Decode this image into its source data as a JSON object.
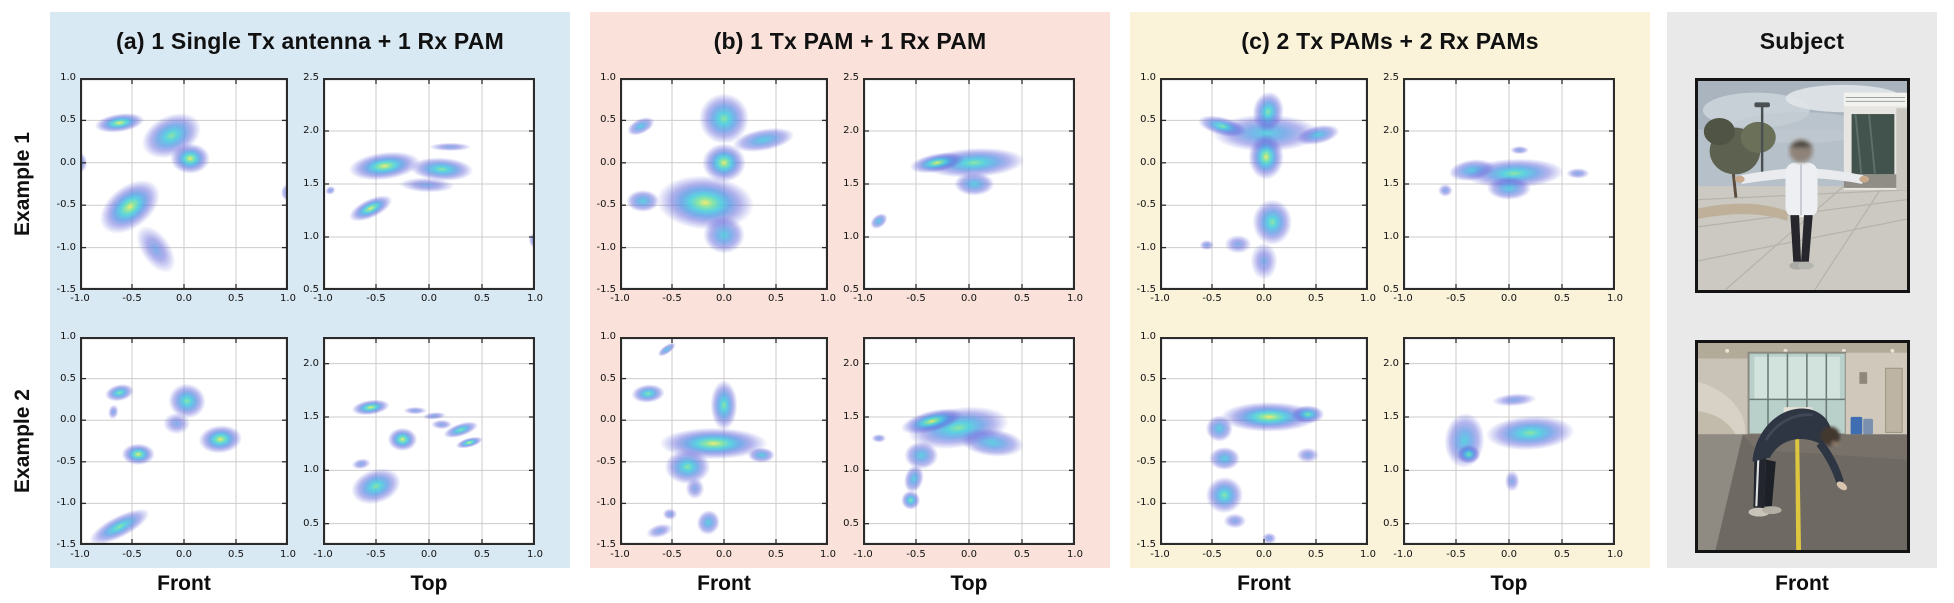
{
  "figure": {
    "row_labels": [
      "Example 1",
      "Example 2"
    ],
    "panels": [
      {
        "id": "a",
        "title": "(a) 1 Single Tx antenna + 1 Rx PAM",
        "bg_key": "panel_a_bg",
        "col_labels": [
          "Front",
          "Top"
        ]
      },
      {
        "id": "b",
        "title": "(b) 1 Tx PAM + 1 Rx PAM",
        "bg_key": "panel_b_bg",
        "col_labels": [
          "Front",
          "Top"
        ]
      },
      {
        "id": "c",
        "title": "(c) 2 Tx PAMs + 2 Rx PAMs",
        "bg_key": "panel_c_bg",
        "col_labels": [
          "Front",
          "Top"
        ]
      }
    ],
    "subject_panel": {
      "title": "Subject",
      "bg_key": "subject_bg",
      "col_label": "Front",
      "photos": [
        {
          "name": "subject-tpose-outdoor",
          "description": "Person standing outdoors on a concrete plaza with both arms extended sideways (T-pose), white jacket, dark pants, face blurred"
        },
        {
          "name": "subject-bend-indoor",
          "description": "Person indoors bending forward reaching toward the floor next to a yellow tape line on dark carpet"
        }
      ]
    },
    "colors": {
      "panel_a_bg": "#d9e9f3",
      "panel_b_bg": "#fae2da",
      "panel_c_bg": "#faf3da",
      "subject_bg": "#e9e9e9",
      "plot_border": "#2b2b2b",
      "grid": "#cccccc",
      "heat_core_yellow": "#f6e96a",
      "heat_green": "#7fe39b",
      "heat_cyan": "#3fc9dc",
      "heat_blue": "#4a90e2",
      "heat_outer_blue": "#5d5fd8"
    }
  },
  "chart_data": [
    {
      "panel": "a",
      "example": 1,
      "view": "Front",
      "type": "scatter",
      "xlim": [
        -1,
        1
      ],
      "ylim": [
        -1.5,
        1.0
      ],
      "x_ticks": [
        -1.0,
        -0.5,
        0.0,
        0.5,
        1.0
      ],
      "y_ticks": [
        1.0,
        0.5,
        0.0,
        -0.5,
        -1.0,
        -1.5
      ],
      "blobs": [
        {
          "x": -0.62,
          "y": 0.47,
          "rx": 0.24,
          "ry": 0.11,
          "rot": -8,
          "heat": "hot"
        },
        {
          "x": -0.12,
          "y": 0.32,
          "rx": 0.3,
          "ry": 0.24,
          "rot": -25,
          "heat": "high"
        },
        {
          "x": 0.06,
          "y": 0.05,
          "rx": 0.19,
          "ry": 0.18,
          "rot": 0,
          "heat": "hot"
        },
        {
          "x": -1.02,
          "y": 0.0,
          "rx": 0.09,
          "ry": 0.13,
          "rot": 0,
          "heat": "mid"
        },
        {
          "x": -0.52,
          "y": -0.52,
          "rx": 0.33,
          "ry": 0.25,
          "rot": -38,
          "heat": "hot"
        },
        {
          "x": -0.27,
          "y": -1.02,
          "rx": 0.14,
          "ry": 0.32,
          "rot": -35,
          "heat": "low"
        },
        {
          "x": 1.02,
          "y": -0.35,
          "rx": 0.09,
          "ry": 0.11,
          "rot": 0,
          "heat": "mid"
        }
      ]
    },
    {
      "panel": "a",
      "example": 1,
      "view": "Top",
      "type": "scatter",
      "xlim": [
        -1,
        1
      ],
      "ylim": [
        0.5,
        2.5
      ],
      "x_ticks": [
        -1.0,
        -0.5,
        0.0,
        0.5,
        1.0
      ],
      "y_ticks": [
        2.5,
        2.0,
        1.5,
        1.0,
        0.5
      ],
      "blobs": [
        {
          "x": -0.42,
          "y": 1.67,
          "rx": 0.34,
          "ry": 0.13,
          "rot": -7,
          "heat": "hot"
        },
        {
          "x": 0.12,
          "y": 1.64,
          "rx": 0.3,
          "ry": 0.11,
          "rot": 3,
          "heat": "high"
        },
        {
          "x": 0.2,
          "y": 1.85,
          "rx": 0.2,
          "ry": 0.04,
          "rot": 0,
          "heat": "low"
        },
        {
          "x": -0.02,
          "y": 1.49,
          "rx": 0.26,
          "ry": 0.07,
          "rot": 2,
          "heat": "low"
        },
        {
          "x": -0.55,
          "y": 1.27,
          "rx": 0.22,
          "ry": 0.09,
          "rot": -25,
          "heat": "hot"
        },
        {
          "x": -0.93,
          "y": 1.44,
          "rx": 0.05,
          "ry": 0.04,
          "rot": -20,
          "heat": "low"
        },
        {
          "x": 1.02,
          "y": 0.97,
          "rx": 0.08,
          "ry": 0.08,
          "rot": 0,
          "heat": "mid"
        }
      ]
    },
    {
      "panel": "a",
      "example": 2,
      "view": "Front",
      "type": "scatter",
      "xlim": [
        -1,
        1
      ],
      "ylim": [
        -1.5,
        1.0
      ],
      "x_ticks": [
        -1.0,
        -0.5,
        0.0,
        0.5,
        1.0
      ],
      "y_ticks": [
        1.0,
        0.5,
        0.0,
        -0.5,
        -1.0,
        -1.5
      ],
      "blobs": [
        {
          "x": -0.62,
          "y": 0.33,
          "rx": 0.14,
          "ry": 0.1,
          "rot": -12,
          "heat": "high"
        },
        {
          "x": -0.68,
          "y": 0.1,
          "rx": 0.05,
          "ry": 0.09,
          "rot": 10,
          "heat": "low"
        },
        {
          "x": 0.03,
          "y": 0.23,
          "rx": 0.18,
          "ry": 0.21,
          "rot": 12,
          "heat": "high"
        },
        {
          "x": -0.07,
          "y": -0.04,
          "rx": 0.13,
          "ry": 0.13,
          "rot": 0,
          "heat": "low"
        },
        {
          "x": -0.44,
          "y": -0.41,
          "rx": 0.16,
          "ry": 0.13,
          "rot": 0,
          "heat": "hot"
        },
        {
          "x": 0.35,
          "y": -0.23,
          "rx": 0.21,
          "ry": 0.17,
          "rot": -5,
          "heat": "hot"
        },
        {
          "x": -0.62,
          "y": -1.28,
          "rx": 0.32,
          "ry": 0.13,
          "rot": -27,
          "heat": "high"
        }
      ]
    },
    {
      "panel": "a",
      "example": 2,
      "view": "Top",
      "type": "scatter",
      "xlim": [
        -1,
        1
      ],
      "ylim": [
        0.3,
        2.25
      ],
      "x_ticks": [
        -1.0,
        -0.5,
        0.0,
        0.5,
        1.0
      ],
      "y_ticks": [
        2.0,
        1.5,
        1.0,
        0.5
      ],
      "blobs": [
        {
          "x": -0.55,
          "y": 1.59,
          "rx": 0.18,
          "ry": 0.07,
          "rot": -8,
          "heat": "hot"
        },
        {
          "x": -0.13,
          "y": 1.56,
          "rx": 0.11,
          "ry": 0.035,
          "rot": 0,
          "heat": "low"
        },
        {
          "x": 0.05,
          "y": 1.51,
          "rx": 0.11,
          "ry": 0.035,
          "rot": -5,
          "heat": "low"
        },
        {
          "x": -0.25,
          "y": 1.29,
          "rx": 0.14,
          "ry": 0.11,
          "rot": 0,
          "heat": "hot"
        },
        {
          "x": 0.12,
          "y": 1.43,
          "rx": 0.1,
          "ry": 0.045,
          "rot": 0,
          "heat": "low"
        },
        {
          "x": 0.3,
          "y": 1.38,
          "rx": 0.17,
          "ry": 0.06,
          "rot": -18,
          "heat": "high"
        },
        {
          "x": 0.38,
          "y": 1.26,
          "rx": 0.13,
          "ry": 0.045,
          "rot": -15,
          "heat": "hot"
        },
        {
          "x": -0.64,
          "y": 1.06,
          "rx": 0.09,
          "ry": 0.05,
          "rot": -10,
          "heat": "low"
        },
        {
          "x": -0.5,
          "y": 0.85,
          "rx": 0.24,
          "ry": 0.16,
          "rot": -18,
          "heat": "high"
        }
      ]
    },
    {
      "panel": "b",
      "example": 1,
      "view": "Front",
      "type": "scatter",
      "xlim": [
        -1,
        1
      ],
      "ylim": [
        -1.5,
        1.0
      ],
      "x_ticks": [
        -1.0,
        -0.5,
        0.0,
        0.5,
        1.0
      ],
      "y_ticks": [
        1.0,
        0.5,
        0.0,
        -0.5,
        -1.0,
        -1.5
      ],
      "blobs": [
        {
          "x": -0.8,
          "y": 0.43,
          "rx": 0.14,
          "ry": 0.09,
          "rot": -25,
          "heat": "mid"
        },
        {
          "x": 0.0,
          "y": 0.52,
          "rx": 0.24,
          "ry": 0.3,
          "rot": 0,
          "heat": "high"
        },
        {
          "x": 0.38,
          "y": 0.27,
          "rx": 0.3,
          "ry": 0.13,
          "rot": -10,
          "heat": "mid"
        },
        {
          "x": 0.0,
          "y": 0.0,
          "rx": 0.21,
          "ry": 0.23,
          "rot": 0,
          "heat": "hot"
        },
        {
          "x": -0.18,
          "y": -0.47,
          "rx": 0.47,
          "ry": 0.32,
          "rot": 4,
          "heat": "hot"
        },
        {
          "x": 0.0,
          "y": -0.85,
          "rx": 0.2,
          "ry": 0.22,
          "rot": 0,
          "heat": "mid"
        },
        {
          "x": -0.78,
          "y": -0.45,
          "rx": 0.16,
          "ry": 0.13,
          "rot": 0,
          "heat": "mid"
        }
      ]
    },
    {
      "panel": "b",
      "example": 1,
      "view": "Top",
      "type": "scatter",
      "xlim": [
        -1,
        1
      ],
      "ylim": [
        0.5,
        2.5
      ],
      "x_ticks": [
        -1.0,
        -0.5,
        0.0,
        0.5,
        1.0
      ],
      "y_ticks": [
        2.5,
        2.0,
        1.5,
        1.0,
        0.5
      ],
      "blobs": [
        {
          "x": 0.05,
          "y": 1.7,
          "rx": 0.48,
          "ry": 0.14,
          "rot": -3,
          "heat": "high"
        },
        {
          "x": -0.3,
          "y": 1.7,
          "rx": 0.26,
          "ry": 0.09,
          "rot": -10,
          "heat": "hot"
        },
        {
          "x": 0.05,
          "y": 1.5,
          "rx": 0.19,
          "ry": 0.11,
          "rot": 0,
          "heat": "mid"
        },
        {
          "x": -0.85,
          "y": 1.15,
          "rx": 0.09,
          "ry": 0.06,
          "rot": -38,
          "heat": "mid"
        }
      ]
    },
    {
      "panel": "b",
      "example": 2,
      "view": "Front",
      "type": "scatter",
      "xlim": [
        -1,
        1
      ],
      "ylim": [
        -1.5,
        1.0
      ],
      "x_ticks": [
        -1.0,
        -0.5,
        0.0,
        0.5,
        1.0
      ],
      "y_ticks": [
        1.0,
        0.5,
        0.0,
        -0.5,
        -1.0,
        -1.5
      ],
      "blobs": [
        {
          "x": -0.55,
          "y": 0.85,
          "rx": 0.1,
          "ry": 0.05,
          "rot": -35,
          "heat": "mid"
        },
        {
          "x": -0.73,
          "y": 0.32,
          "rx": 0.16,
          "ry": 0.11,
          "rot": -5,
          "heat": "high"
        },
        {
          "x": -0.1,
          "y": -0.28,
          "rx": 0.52,
          "ry": 0.19,
          "rot": 0,
          "heat": "hot"
        },
        {
          "x": 0.0,
          "y": 0.18,
          "rx": 0.13,
          "ry": 0.3,
          "rot": 0,
          "heat": "high"
        },
        {
          "x": -0.35,
          "y": -0.56,
          "rx": 0.22,
          "ry": 0.21,
          "rot": 0,
          "heat": "high"
        },
        {
          "x": -0.28,
          "y": -0.82,
          "rx": 0.09,
          "ry": 0.13,
          "rot": 0,
          "heat": "low"
        },
        {
          "x": 0.36,
          "y": -0.42,
          "rx": 0.13,
          "ry": 0.09,
          "rot": 0,
          "heat": "mid"
        },
        {
          "x": -0.62,
          "y": -1.33,
          "rx": 0.13,
          "ry": 0.08,
          "rot": -15,
          "heat": "low"
        },
        {
          "x": -0.52,
          "y": -1.13,
          "rx": 0.07,
          "ry": 0.07,
          "rot": 0,
          "heat": "low"
        },
        {
          "x": -0.15,
          "y": -1.23,
          "rx": 0.11,
          "ry": 0.15,
          "rot": 20,
          "heat": "mid"
        }
      ]
    },
    {
      "panel": "b",
      "example": 2,
      "view": "Top",
      "type": "scatter",
      "xlim": [
        -1,
        1
      ],
      "ylim": [
        0.3,
        2.25
      ],
      "x_ticks": [
        -1.0,
        -0.5,
        0.0,
        0.5,
        1.0
      ],
      "y_ticks": [
        2.0,
        1.5,
        1.0,
        0.5
      ],
      "blobs": [
        {
          "x": -0.1,
          "y": 1.4,
          "rx": 0.48,
          "ry": 0.19,
          "rot": -8,
          "heat": "high"
        },
        {
          "x": -0.35,
          "y": 1.46,
          "rx": 0.3,
          "ry": 0.1,
          "rot": -14,
          "heat": "hot"
        },
        {
          "x": 0.22,
          "y": 1.26,
          "rx": 0.3,
          "ry": 0.13,
          "rot": 6,
          "heat": "mid"
        },
        {
          "x": -0.45,
          "y": 1.14,
          "rx": 0.16,
          "ry": 0.13,
          "rot": 0,
          "heat": "mid"
        },
        {
          "x": -0.52,
          "y": 0.92,
          "rx": 0.09,
          "ry": 0.13,
          "rot": 15,
          "heat": "mid"
        },
        {
          "x": -0.55,
          "y": 0.72,
          "rx": 0.09,
          "ry": 0.09,
          "rot": 0,
          "heat": "high"
        },
        {
          "x": -0.85,
          "y": 1.3,
          "rx": 0.07,
          "ry": 0.04,
          "rot": 0,
          "heat": "low"
        }
      ]
    },
    {
      "panel": "c",
      "example": 1,
      "view": "Front",
      "type": "scatter",
      "xlim": [
        -1,
        1
      ],
      "ylim": [
        -1.5,
        1.0
      ],
      "x_ticks": [
        -1.0,
        -0.5,
        0.0,
        0.5,
        1.0
      ],
      "y_ticks": [
        1.0,
        0.5,
        0.0,
        -0.5,
        -1.0,
        -1.5
      ],
      "blobs": [
        {
          "x": 0.02,
          "y": 0.35,
          "rx": 0.52,
          "ry": 0.22,
          "rot": 0,
          "heat": "mid"
        },
        {
          "x": 0.04,
          "y": 0.6,
          "rx": 0.15,
          "ry": 0.24,
          "rot": 8,
          "heat": "high"
        },
        {
          "x": -0.4,
          "y": 0.43,
          "rx": 0.24,
          "ry": 0.11,
          "rot": 14,
          "heat": "high"
        },
        {
          "x": 0.52,
          "y": 0.33,
          "rx": 0.21,
          "ry": 0.11,
          "rot": -12,
          "heat": "mid"
        },
        {
          "x": 0.02,
          "y": 0.07,
          "rx": 0.17,
          "ry": 0.27,
          "rot": 0,
          "heat": "hot"
        },
        {
          "x": 0.08,
          "y": -0.7,
          "rx": 0.19,
          "ry": 0.27,
          "rot": 0,
          "heat": "high"
        },
        {
          "x": -0.25,
          "y": -0.96,
          "rx": 0.13,
          "ry": 0.11,
          "rot": 0,
          "heat": "low"
        },
        {
          "x": 0.0,
          "y": -1.16,
          "rx": 0.13,
          "ry": 0.22,
          "rot": 0,
          "heat": "low"
        },
        {
          "x": -0.55,
          "y": -0.97,
          "rx": 0.07,
          "ry": 0.06,
          "rot": 0,
          "heat": "low"
        }
      ]
    },
    {
      "panel": "c",
      "example": 1,
      "view": "Top",
      "type": "scatter",
      "xlim": [
        -1,
        1
      ],
      "ylim": [
        0.5,
        2.5
      ],
      "x_ticks": [
        -1.0,
        -0.5,
        0.0,
        0.5,
        1.0
      ],
      "y_ticks": [
        2.5,
        2.0,
        1.5,
        1.0,
        0.5
      ],
      "blobs": [
        {
          "x": 0.05,
          "y": 1.6,
          "rx": 0.47,
          "ry": 0.14,
          "rot": -2,
          "heat": "high"
        },
        {
          "x": -0.35,
          "y": 1.63,
          "rx": 0.22,
          "ry": 0.1,
          "rot": -8,
          "heat": "mid"
        },
        {
          "x": 0.0,
          "y": 1.46,
          "rx": 0.21,
          "ry": 0.11,
          "rot": 0,
          "heat": "mid"
        },
        {
          "x": -0.6,
          "y": 1.44,
          "rx": 0.07,
          "ry": 0.06,
          "rot": 0,
          "heat": "low"
        },
        {
          "x": 0.1,
          "y": 1.82,
          "rx": 0.09,
          "ry": 0.04,
          "rot": 0,
          "heat": "low"
        },
        {
          "x": 0.65,
          "y": 1.6,
          "rx": 0.11,
          "ry": 0.05,
          "rot": 0,
          "heat": "low"
        }
      ]
    },
    {
      "panel": "c",
      "example": 2,
      "view": "Front",
      "type": "scatter",
      "xlim": [
        -1,
        1
      ],
      "ylim": [
        -1.5,
        1.0
      ],
      "x_ticks": [
        -1.0,
        -0.5,
        0.0,
        0.5,
        1.0
      ],
      "y_ticks": [
        1.0,
        0.5,
        0.0,
        -0.5,
        -1.0,
        -1.5
      ],
      "blobs": [
        {
          "x": 0.05,
          "y": 0.04,
          "rx": 0.47,
          "ry": 0.18,
          "rot": 0,
          "heat": "hot"
        },
        {
          "x": 0.42,
          "y": 0.07,
          "rx": 0.16,
          "ry": 0.11,
          "rot": 0,
          "heat": "high"
        },
        {
          "x": -0.43,
          "y": -0.1,
          "rx": 0.13,
          "ry": 0.16,
          "rot": 0,
          "heat": "mid"
        },
        {
          "x": -0.38,
          "y": -0.46,
          "rx": 0.15,
          "ry": 0.14,
          "rot": 0,
          "heat": "mid"
        },
        {
          "x": -0.38,
          "y": -0.9,
          "rx": 0.18,
          "ry": 0.22,
          "rot": -15,
          "heat": "high"
        },
        {
          "x": -0.28,
          "y": -1.21,
          "rx": 0.11,
          "ry": 0.09,
          "rot": 0,
          "heat": "low"
        },
        {
          "x": 0.05,
          "y": -1.42,
          "rx": 0.07,
          "ry": 0.07,
          "rot": 0,
          "heat": "low"
        },
        {
          "x": 0.42,
          "y": -0.42,
          "rx": 0.11,
          "ry": 0.09,
          "rot": 0,
          "heat": "low"
        }
      ]
    },
    {
      "panel": "c",
      "example": 2,
      "view": "Top",
      "type": "scatter",
      "xlim": [
        -1,
        1
      ],
      "ylim": [
        0.3,
        2.25
      ],
      "x_ticks": [
        -1.0,
        -0.5,
        0.0,
        0.5,
        1.0
      ],
      "y_ticks": [
        2.0,
        1.5,
        1.0,
        0.5
      ],
      "blobs": [
        {
          "x": 0.2,
          "y": 1.35,
          "rx": 0.42,
          "ry": 0.16,
          "rot": -3,
          "heat": "high"
        },
        {
          "x": -0.42,
          "y": 1.28,
          "rx": 0.19,
          "ry": 0.26,
          "rot": 4,
          "heat": "mid"
        },
        {
          "x": -0.38,
          "y": 1.15,
          "rx": 0.11,
          "ry": 0.09,
          "rot": 0,
          "heat": "high"
        },
        {
          "x": 0.05,
          "y": 1.66,
          "rx": 0.21,
          "ry": 0.06,
          "rot": -4,
          "heat": "low"
        },
        {
          "x": 0.03,
          "y": 0.9,
          "rx": 0.07,
          "ry": 0.1,
          "rot": 0,
          "heat": "low"
        }
      ]
    }
  ]
}
